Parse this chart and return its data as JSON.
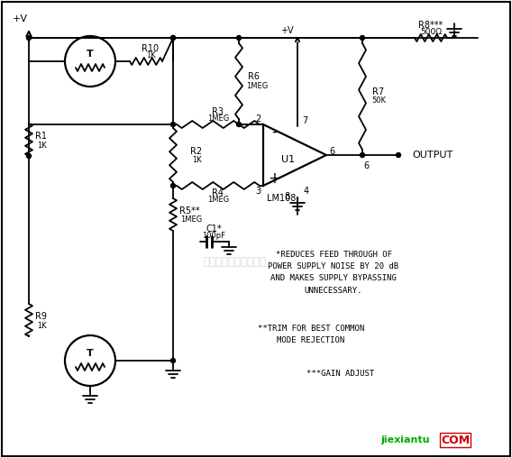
{
  "bg_color": "#ffffff",
  "line_color": "#000000",
  "watermark": "杭州将睿科技有限公司",
  "watermark_color": "#c8c8c8",
  "note1": "*REDUCES FEED THROUGH OF\nPOWER SUPPLY NOISE BY 20 dB\nAND MAKES SUPPLY BYPASSING\nUNNECESSARY.",
  "note2": "**TRIM FOR BEST COMMON\nMODE REJECTION",
  "note3": "***GAIN ADJUST",
  "logo1": "jiexiantu",
  "logo1_color": "#00aa00",
  "logo2": "COM",
  "logo2_color": "#cc0000",
  "logo_box_color": "#cc0000"
}
